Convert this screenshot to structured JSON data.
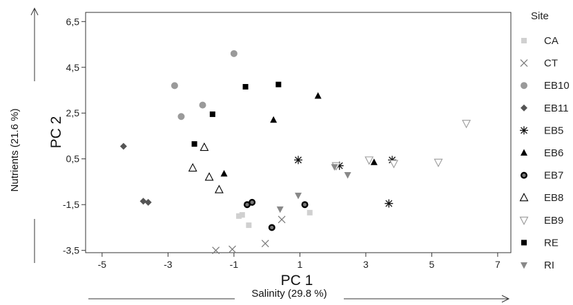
{
  "chart_data": {
    "type": "scatter",
    "xlabel": "PC 1",
    "ylabel": "PC 2",
    "x_arrow_label": "Salinity (29.8 %)",
    "y_arrow_label": "Nutrients (21.6 %)",
    "xlim": [
      -5.5,
      7.4
    ],
    "ylim": [
      -3.6,
      6.9
    ],
    "x_ticks": [
      -5,
      -3,
      -1,
      1,
      3,
      5,
      7
    ],
    "y_ticks": [
      -3.5,
      -1.5,
      0.5,
      2.5,
      4.5,
      6.5
    ],
    "x_tick_labels": [
      "-5",
      "-3",
      "-1",
      "1",
      "3",
      "5",
      "7"
    ],
    "y_tick_labels": [
      "-3,5",
      "-1,5",
      "0,5",
      "2,5",
      "4,5",
      "6,5"
    ],
    "grid": false,
    "legend_title": "Site",
    "legend_position": "right",
    "series": [
      {
        "name": "CA",
        "marker": "square",
        "color": "#d0d0d0",
        "x": [
          -0.85,
          -0.75,
          -0.55,
          1.3
        ],
        "y": [
          -2.0,
          -1.95,
          -2.4,
          -1.85
        ]
      },
      {
        "name": "CT",
        "marker": "x",
        "color": "#777777",
        "x": [
          -1.55,
          -1.05,
          -0.05,
          0.45
        ],
        "y": [
          -3.5,
          -3.45,
          -3.2,
          -2.15
        ]
      },
      {
        "name": "EB10",
        "marker": "circle",
        "color": "#9a9a9a",
        "x": [
          -2.8,
          -2.6,
          -1.95,
          -1.0
        ],
        "y": [
          3.7,
          2.35,
          2.85,
          5.1
        ]
      },
      {
        "name": "EB11",
        "marker": "diamond",
        "color": "#555555",
        "x": [
          -4.35,
          -3.75,
          -3.6
        ],
        "y": [
          1.05,
          -1.35,
          -1.4
        ]
      },
      {
        "name": "EB5",
        "marker": "star",
        "color": "#111111",
        "x": [
          0.95,
          2.2,
          3.8,
          3.7
        ],
        "y": [
          0.45,
          0.2,
          0.45,
          -1.45
        ]
      },
      {
        "name": "EB6",
        "marker": "triangle-up",
        "color": "#000000",
        "x": [
          -1.3,
          0.2,
          1.55,
          3.25
        ],
        "y": [
          -0.15,
          2.2,
          3.25,
          0.35
        ]
      },
      {
        "name": "EB7",
        "marker": "circle-dot",
        "color": "#000000",
        "x": [
          -0.6,
          -0.45,
          0.15,
          1.15
        ],
        "y": [
          -1.5,
          -1.4,
          -2.5,
          -1.5
        ]
      },
      {
        "name": "EB8",
        "marker": "triangle-up-open",
        "color": "#000000",
        "x": [
          -2.25,
          -1.9,
          -1.75,
          -1.45
        ],
        "y": [
          0.1,
          1.0,
          -0.3,
          -0.85
        ]
      },
      {
        "name": "EB9",
        "marker": "triangle-down-open",
        "color": "#999999",
        "x": [
          2.1,
          3.1,
          3.85,
          5.2,
          6.05
        ],
        "y": [
          0.2,
          0.45,
          0.3,
          0.35,
          2.05
        ]
      },
      {
        "name": "RE",
        "marker": "square",
        "color": "#000000",
        "x": [
          -2.2,
          -1.65,
          -0.65,
          0.35
        ],
        "y": [
          1.15,
          2.45,
          3.65,
          3.75
        ]
      },
      {
        "name": "RI",
        "marker": "triangle-down",
        "color": "#888888",
        "x": [
          0.4,
          0.95,
          2.05,
          2.45
        ],
        "y": [
          -1.7,
          -1.1,
          0.15,
          -0.2
        ]
      }
    ]
  }
}
